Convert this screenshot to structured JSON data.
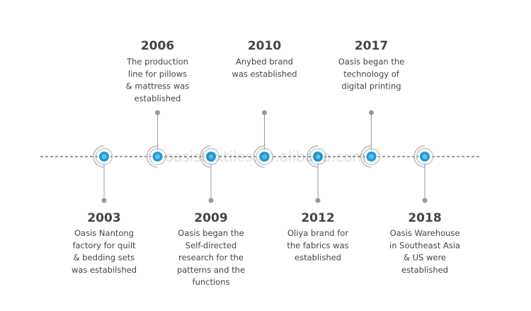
{
  "events": [
    {
      "year": "2003",
      "side": "bottom",
      "lines": [
        "Oasis Nantong",
        "factory for quilt",
        "& bedding sets",
        "was estabilshed"
      ]
    },
    {
      "year": "2006",
      "side": "top",
      "lines": [
        "The production",
        "line for pillows",
        "& mattress was",
        "established"
      ]
    },
    {
      "year": "2009",
      "side": "bottom",
      "lines": [
        "Oasis began the",
        "Self-directed",
        "research for the",
        "patterns and the",
        "functions"
      ]
    },
    {
      "year": "2010",
      "side": "top",
      "lines": [
        "Anybed brand",
        "was established"
      ]
    },
    {
      "year": "2012",
      "side": "bottom",
      "lines": [
        "Oliya brand for",
        "the fabrics was",
        "established"
      ]
    },
    {
      "year": "2017",
      "side": "top",
      "lines": [
        "Oasis began the",
        "technology of",
        "digital printing"
      ]
    },
    {
      "year": "2018",
      "side": "bottom",
      "lines": [
        "Oasis Warehouse",
        "in Southeast Asia",
        "& US were",
        "established"
      ]
    }
  ],
  "watermark": "oasistextiles.en.alibaba.com"
}
